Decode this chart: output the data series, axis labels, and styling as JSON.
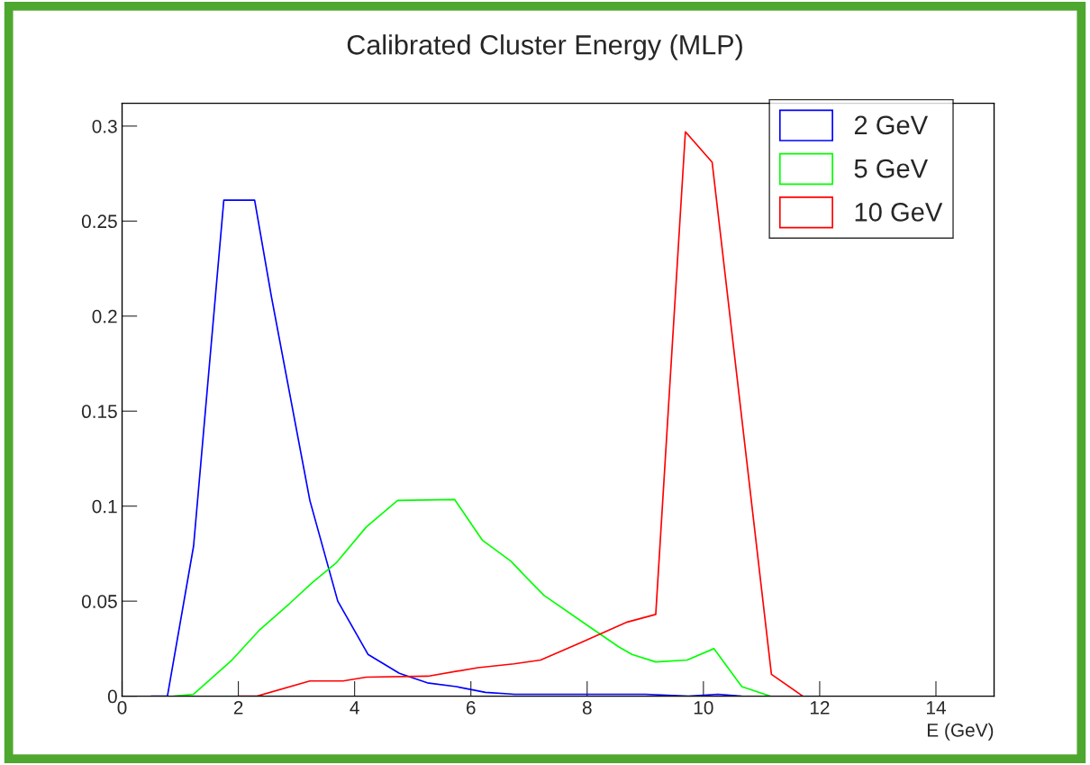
{
  "chart_data": {
    "type": "line",
    "title": "Calibrated Cluster Energy (MLP)",
    "xlabel": "E (GeV)",
    "xlim": [
      0,
      15
    ],
    "xticks": [
      0,
      2,
      4,
      6,
      8,
      10,
      12,
      14
    ],
    "ylim": [
      0,
      0.312
    ],
    "yticks": [
      0,
      0.05,
      0.1,
      0.15,
      0.2,
      0.25,
      0.3
    ],
    "grid": false,
    "legend": "top right",
    "marker": "none",
    "line_style": "solid",
    "series": [
      {
        "name": "2 GeV",
        "color": "#0000ff",
        "x": [
          0.5,
          0.78,
          1.23,
          1.75,
          2.28,
          2.57,
          3.23,
          3.71,
          4.23,
          4.77,
          5.25,
          5.75,
          6.25,
          6.75,
          9.0,
          9.25,
          9.75,
          10.25,
          10.65
        ],
        "values": [
          0,
          0,
          0.079,
          0.261,
          0.261,
          0.21,
          0.103,
          0.05,
          0.022,
          0.012,
          0.007,
          0.005,
          0.002,
          0.001,
          0.001,
          null,
          0,
          0.001,
          0
        ]
      },
      {
        "name": "5 GeV",
        "color": "#00ff00",
        "x": [
          0.89,
          1.23,
          1.89,
          2.37,
          2.89,
          3.28,
          3.68,
          4.2,
          4.74,
          5.72,
          6.2,
          6.69,
          6.97,
          7.26,
          7.97,
          8.54,
          8.77,
          9.18,
          9.72,
          10.18,
          10.66,
          11.15
        ],
        "values": [
          0,
          0.001,
          0.019,
          0.035,
          0.049,
          0.06,
          0.07,
          0.089,
          0.103,
          0.1035,
          0.082,
          0.071,
          0.062,
          0.053,
          0.038,
          0.026,
          0.022,
          0.018,
          0.019,
          0.025,
          0.005,
          0
        ]
      },
      {
        "name": "10 GeV",
        "color": "#ff0000",
        "x": [
          2.0,
          2.32,
          3.23,
          3.8,
          4.2,
          5.26,
          6.12,
          6.74,
          7.2,
          7.88,
          8.69,
          9.18,
          9.69,
          10.15,
          11.17,
          11.71
        ],
        "values": [
          0,
          0,
          0.008,
          0.008,
          0.01,
          0.0105,
          0.015,
          0.017,
          0.019,
          0.028,
          0.039,
          0.043,
          0.297,
          0.281,
          0.0115,
          0
        ]
      }
    ]
  }
}
